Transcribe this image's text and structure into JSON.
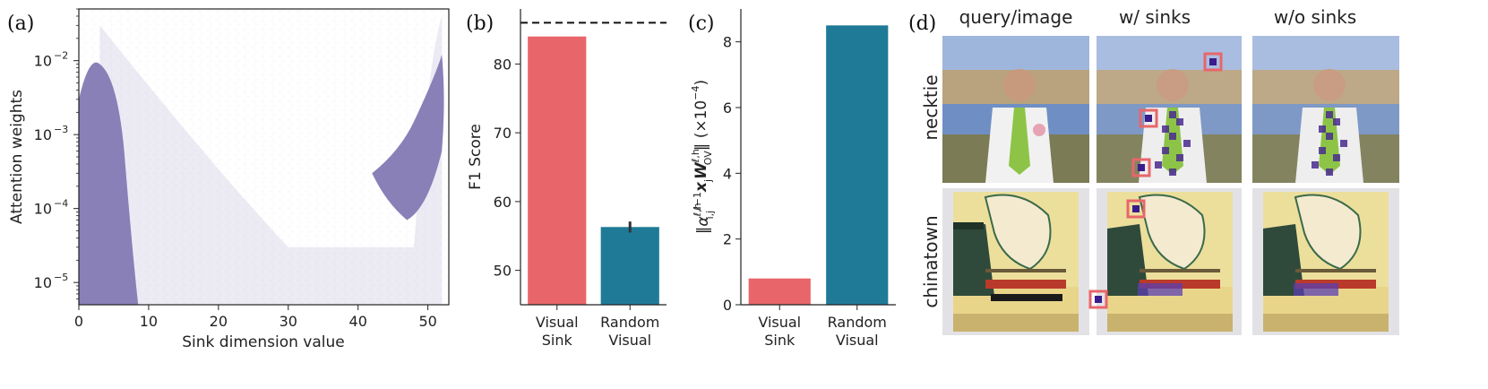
{
  "colors": {
    "scatter": "#8a80b8",
    "visual_sink": "#e8666a",
    "random_visual": "#1f7a97",
    "axis": "#222222",
    "marker_box": "#e8666a",
    "marker_fill": "#3b1c8c"
  },
  "chart_data": [
    {
      "panel": "(a)",
      "type": "scatter",
      "xlabel": "Sink dimension value",
      "ylabel": "Attention weights",
      "xlim": [
        0,
        53
      ],
      "ylim": [
        5e-06,
        0.05
      ],
      "yscale": "log",
      "xticks": [
        0,
        10,
        20,
        30,
        40,
        50
      ],
      "yticks": [
        {
          "value": 0.01,
          "label": "10",
          "exp": "-2"
        },
        {
          "value": 0.001,
          "label": "10",
          "exp": "-3"
        },
        {
          "value": 0.0001,
          "label": "10",
          "exp": "-4"
        },
        {
          "value": 1e-05,
          "label": "10",
          "exp": "-5"
        }
      ],
      "dense_regions": [
        {
          "x": [
            0,
            8.5
          ],
          "y": [
            5e-06,
            0.01
          ]
        },
        {
          "x": [
            42,
            52.5
          ],
          "y": [
            5e-06,
            0.01
          ]
        }
      ]
    },
    {
      "panel": "(b)",
      "type": "bar",
      "ylabel": "F1 Score",
      "categories": [
        [
          "Visual",
          "Sink"
        ],
        [
          "Random",
          "Visual"
        ]
      ],
      "values": [
        84,
        56.3
      ],
      "error": [
        null,
        0.8
      ],
      "reference_line": 86,
      "ylim": [
        45,
        88
      ],
      "yticks": [
        50,
        60,
        70,
        80
      ]
    },
    {
      "panel": "(c)",
      "type": "bar",
      "ylabel": "‖α x W‖ (×10⁻⁴)",
      "categories": [
        [
          "Visual",
          "Sink"
        ],
        [
          "Random",
          "Visual"
        ]
      ],
      "values": [
        0.8,
        8.5
      ],
      "ylim": [
        0,
        9
      ],
      "yticks": [
        0,
        2,
        4,
        6,
        8
      ]
    }
  ],
  "panel_d": {
    "label": "(d)",
    "columns": [
      "query/image",
      "w/ sinks",
      "w/o sinks"
    ],
    "rows": [
      "necktie",
      "chinatown"
    ]
  }
}
